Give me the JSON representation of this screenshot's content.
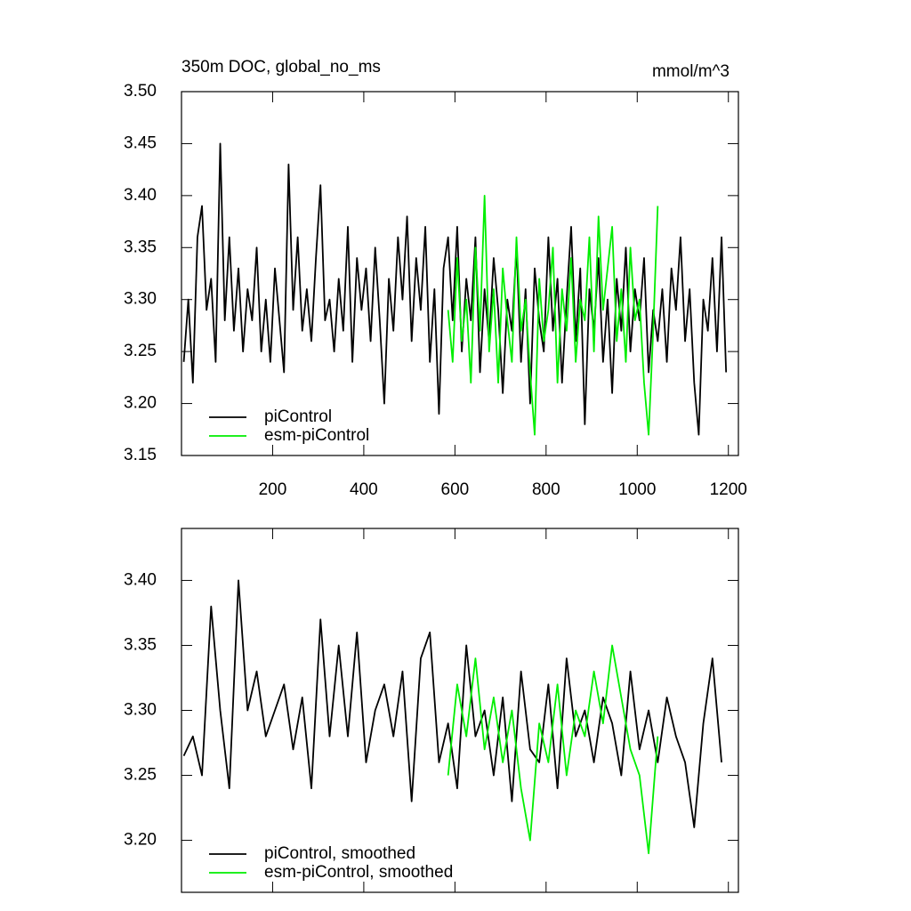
{
  "chart_data": [
    {
      "type": "line",
      "title": "350m DOC, global_no_ms",
      "units": "mmol/m^3",
      "xlim": [
        0,
        1222
      ],
      "xticks": [
        200,
        400,
        600,
        800,
        1000,
        1200
      ],
      "xtick_labels": true,
      "ylim": [
        3.15,
        3.5
      ],
      "yticks": [
        3.15,
        {
          "value": 3.2,
          "label": "3.20"
        },
        3.25,
        {
          "value": 3.3,
          "label": "3.30"
        },
        3.35,
        {
          "value": 3.4,
          "label": "3.40"
        },
        3.45,
        {
          "value": 3.5,
          "label": "3.50"
        }
      ],
      "legend": "lower left",
      "series": [
        {
          "name": "piControl",
          "color": "#000000",
          "x": [
            5,
            15,
            25,
            35,
            45,
            55,
            65,
            75,
            85,
            95,
            105,
            115,
            125,
            135,
            145,
            155,
            165,
            175,
            185,
            195,
            205,
            215,
            225,
            235,
            245,
            255,
            265,
            275,
            285,
            295,
            305,
            315,
            325,
            335,
            345,
            355,
            365,
            375,
            385,
            395,
            405,
            415,
            425,
            435,
            445,
            455,
            465,
            475,
            485,
            495,
            505,
            515,
            525,
            535,
            545,
            555,
            565,
            575,
            585,
            595,
            605,
            615,
            625,
            635,
            645,
            655,
            665,
            675,
            685,
            695,
            705,
            715,
            725,
            735,
            745,
            755,
            765,
            775,
            785,
            795,
            805,
            815,
            825,
            835,
            845,
            855,
            865,
            875,
            885,
            895,
            905,
            915,
            925,
            935,
            945,
            955,
            965,
            975,
            985,
            995,
            1005,
            1015,
            1025,
            1035,
            1045,
            1055,
            1065,
            1075,
            1085,
            1095,
            1105,
            1115,
            1125,
            1135,
            1145,
            1155,
            1165,
            1175,
            1185,
            1195
          ],
          "values": [
            3.24,
            3.3,
            3.22,
            3.36,
            3.39,
            3.29,
            3.32,
            3.24,
            3.45,
            3.28,
            3.36,
            3.27,
            3.33,
            3.25,
            3.31,
            3.28,
            3.35,
            3.25,
            3.3,
            3.24,
            3.33,
            3.28,
            3.23,
            3.43,
            3.29,
            3.36,
            3.27,
            3.31,
            3.26,
            3.34,
            3.41,
            3.28,
            3.3,
            3.25,
            3.32,
            3.27,
            3.37,
            3.24,
            3.34,
            3.29,
            3.33,
            3.26,
            3.35,
            3.28,
            3.2,
            3.32,
            3.27,
            3.36,
            3.3,
            3.38,
            3.26,
            3.34,
            3.29,
            3.37,
            3.24,
            3.31,
            3.19,
            3.33,
            3.36,
            3.28,
            3.37,
            3.25,
            3.32,
            3.28,
            3.36,
            3.23,
            3.31,
            3.26,
            3.34,
            3.29,
            3.21,
            3.3,
            3.27,
            3.35,
            3.24,
            3.31,
            3.2,
            3.33,
            3.28,
            3.25,
            3.36,
            3.27,
            3.32,
            3.22,
            3.3,
            3.37,
            3.26,
            3.33,
            3.18,
            3.31,
            3.27,
            3.34,
            3.24,
            3.3,
            3.21,
            3.32,
            3.27,
            3.35,
            3.25,
            3.31,
            3.28,
            3.34,
            3.23,
            3.29,
            3.26,
            3.31,
            3.24,
            3.33,
            3.29,
            3.36,
            3.26,
            3.31,
            3.22,
            3.17,
            3.3,
            3.27,
            3.34,
            3.25,
            3.36,
            3.23
          ]
        },
        {
          "name": "esm-piControl",
          "color": "#00ee00",
          "x": [
            585,
            595,
            605,
            615,
            625,
            635,
            645,
            655,
            665,
            675,
            685,
            695,
            705,
            715,
            725,
            735,
            745,
            755,
            765,
            775,
            785,
            795,
            805,
            815,
            825,
            835,
            845,
            855,
            865,
            875,
            885,
            895,
            905,
            915,
            925,
            935,
            945,
            955,
            965,
            975,
            985,
            995,
            1005,
            1015,
            1025,
            1035,
            1045
          ],
          "values": [
            3.29,
            3.24,
            3.34,
            3.26,
            3.3,
            3.22,
            3.35,
            3.27,
            3.4,
            3.25,
            3.31,
            3.22,
            3.33,
            3.28,
            3.24,
            3.36,
            3.27,
            3.3,
            3.23,
            3.17,
            3.32,
            3.26,
            3.29,
            3.35,
            3.22,
            3.31,
            3.27,
            3.34,
            3.24,
            3.3,
            3.28,
            3.36,
            3.25,
            3.38,
            3.29,
            3.33,
            3.37,
            3.26,
            3.31,
            3.24,
            3.35,
            3.28,
            3.3,
            3.22,
            3.17,
            3.27,
            3.39
          ]
        }
      ]
    },
    {
      "type": "line",
      "xlim": [
        0,
        1222
      ],
      "xticks": [
        200,
        400,
        600,
        800,
        1000,
        1200
      ],
      "xtick_labels": false,
      "ylim": [
        3.16,
        3.44
      ],
      "yticks": [
        {
          "value": 3.2,
          "label": "3.20"
        },
        3.25,
        {
          "value": 3.3,
          "label": "3.30"
        },
        3.35,
        {
          "value": 3.4,
          "label": "3.40"
        }
      ],
      "legend": "lower left",
      "series": [
        {
          "name": "piControl, smoothed",
          "color": "#000000",
          "x": [
            5,
            25,
            45,
            65,
            85,
            105,
            125,
            145,
            165,
            185,
            205,
            225,
            245,
            265,
            285,
            305,
            325,
            345,
            365,
            385,
            405,
            425,
            445,
            465,
            485,
            505,
            525,
            545,
            565,
            585,
            605,
            625,
            645,
            665,
            685,
            705,
            725,
            745,
            765,
            785,
            805,
            825,
            845,
            865,
            885,
            905,
            925,
            945,
            965,
            985,
            1005,
            1025,
            1045,
            1065,
            1085,
            1105,
            1125,
            1145,
            1165,
            1185
          ],
          "values": [
            3.265,
            3.28,
            3.25,
            3.38,
            3.3,
            3.24,
            3.4,
            3.3,
            3.33,
            3.28,
            3.3,
            3.32,
            3.27,
            3.31,
            3.24,
            3.37,
            3.28,
            3.35,
            3.28,
            3.36,
            3.26,
            3.3,
            3.32,
            3.28,
            3.33,
            3.23,
            3.34,
            3.36,
            3.26,
            3.29,
            3.24,
            3.35,
            3.28,
            3.3,
            3.25,
            3.31,
            3.23,
            3.33,
            3.27,
            3.26,
            3.32,
            3.24,
            3.34,
            3.28,
            3.3,
            3.26,
            3.31,
            3.29,
            3.25,
            3.33,
            3.27,
            3.3,
            3.26,
            3.31,
            3.28,
            3.26,
            3.21,
            3.29,
            3.34,
            3.26
          ]
        },
        {
          "name": "esm-piControl, smoothed",
          "color": "#00ee00",
          "x": [
            585,
            605,
            625,
            645,
            665,
            685,
            705,
            725,
            745,
            765,
            785,
            805,
            825,
            845,
            865,
            885,
            905,
            925,
            945,
            965,
            985,
            1005,
            1025,
            1045
          ],
          "values": [
            3.25,
            3.32,
            3.28,
            3.34,
            3.27,
            3.31,
            3.26,
            3.3,
            3.24,
            3.2,
            3.29,
            3.26,
            3.32,
            3.25,
            3.3,
            3.28,
            3.33,
            3.29,
            3.35,
            3.31,
            3.27,
            3.25,
            3.19,
            3.28
          ]
        }
      ]
    }
  ]
}
